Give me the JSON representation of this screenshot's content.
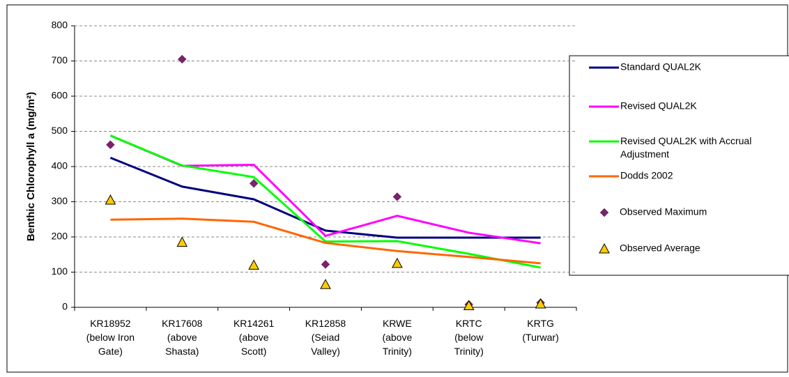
{
  "chart_data": {
    "type": "line",
    "y_label": "Benthic Chlorophyll a (mg/m²)",
    "categories": [
      "KR18952\n(below Iron\nGate)",
      "KR17608\n(above\nShasta)",
      "KR14261\n(above\nScott)",
      "KR12858\n(Seiad\nValley)",
      "KRWE\n(above\nTrinity)",
      "KRTC\n(below\nTrinity)",
      "KRTG\n(Turwar)"
    ],
    "series": [
      {
        "name": "Standard QUAL2K",
        "color": "#00007f",
        "marker": "line",
        "values": [
          425,
          343,
          307,
          218,
          198,
          198,
          198
        ]
      },
      {
        "name": "Revised QUAL2K",
        "color": "#ff00ff",
        "marker": "line",
        "values": [
          488,
          402,
          405,
          203,
          260,
          212,
          182
        ]
      },
      {
        "name": "Revised QUAL2K with Accrual Adjustment",
        "color": "#00ff00",
        "marker": "line",
        "values": [
          488,
          403,
          370,
          187,
          188,
          152,
          113
        ]
      },
      {
        "name": "Dodds 2002",
        "color": "#ff6600",
        "marker": "line",
        "values": [
          249,
          252,
          243,
          183,
          160,
          143,
          125
        ]
      },
      {
        "name": "Observed Maximum",
        "color": "#7f1f6f",
        "marker": "diamond",
        "values": [
          462,
          705,
          352,
          122,
          314,
          8,
          13
        ]
      },
      {
        "name": "Observed Average",
        "color": "#ffcc00",
        "marker": "triangle",
        "values": [
          305,
          185,
          120,
          65,
          125,
          5,
          10
        ]
      }
    ],
    "ylim": [
      0,
      800
    ],
    "yticks": [
      0,
      100,
      200,
      300,
      400,
      500,
      600,
      700,
      800
    ],
    "grid": true
  }
}
